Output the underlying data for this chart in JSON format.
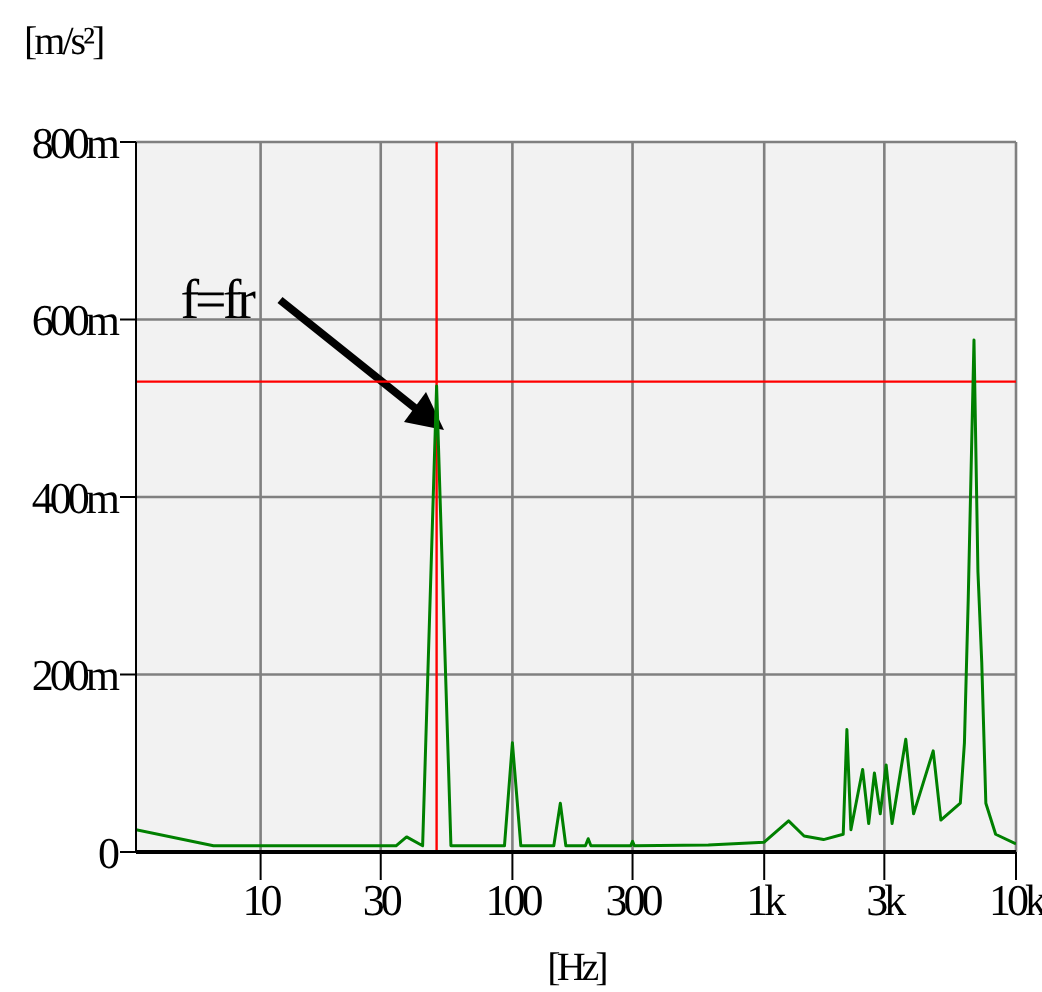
{
  "chart_data": {
    "type": "line",
    "ylabel": "[m/s²]",
    "xlabel": "[Hz]",
    "annotations": [
      "f=fr"
    ],
    "x": [
      3.2,
      6.5,
      34.5,
      38,
      44,
      50,
      57,
      93,
      100,
      108,
      146,
      155,
      163,
      195,
      200,
      205,
      295,
      300,
      305,
      600,
      1000,
      1250,
      1440,
      1720,
      2060,
      2130,
      2210,
      2460,
      2600,
      2740,
      2890,
      3050,
      3220,
      3650,
      3920,
      4690,
      5030,
      6010,
      6240,
      6460,
      6810,
      7060,
      7310,
      7590,
      8300,
      10000
    ],
    "series": [
      {
        "color": "#008000",
        "values": [
          25,
          7,
          7,
          17,
          7,
          525,
          7,
          7,
          123,
          7,
          7,
          55,
          7,
          7,
          15,
          7,
          7,
          12,
          7,
          8,
          11,
          35,
          18,
          14,
          20,
          138,
          25,
          93,
          32,
          89,
          43,
          98,
          32,
          127,
          43,
          114,
          36,
          55,
          123,
          284,
          577,
          316,
          214,
          55,
          20,
          9
        ]
      }
    ],
    "log": "x",
    "xlim": [
      3.2,
      10000
    ],
    "xticks": [
      10,
      30,
      100,
      300,
      {
        "value": 1000,
        "label": "1k"
      },
      {
        "value": 3000,
        "label": "3k"
      },
      {
        "value": 10000,
        "label": "10k"
      }
    ],
    "ylim": [
      0,
      800
    ],
    "yticks": [
      0,
      {
        "value": 200,
        "label": "200m"
      },
      {
        "value": 400,
        "label": "400m"
      },
      {
        "value": 600,
        "label": "600m"
      },
      {
        "value": 800,
        "label": "800m"
      }
    ],
    "grid": true,
    "ref_lines": [
      {
        "axis": "x",
        "value": 50,
        "color": "#ff0000"
      },
      {
        "axis": "y",
        "value": 530,
        "color": "#ff0000"
      }
    ]
  }
}
